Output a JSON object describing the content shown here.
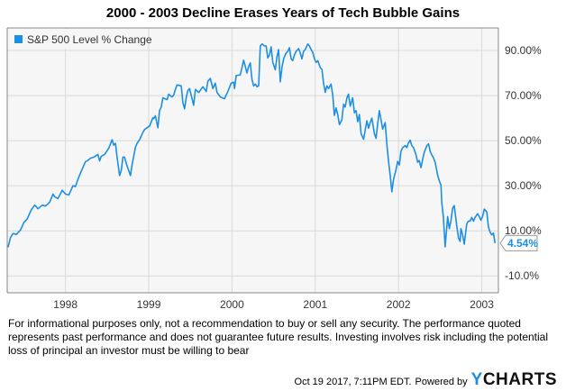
{
  "chart_data": {
    "type": "line",
    "title": "2000 - 2003 Decline Erases Years of Tech Bubble Gains",
    "xlabel": "",
    "ylabel": "",
    "xlim": [
      1997.3,
      2003.2
    ],
    "ylim": [
      -17.5,
      100
    ],
    "grid": true,
    "legend": {
      "position": "top-left",
      "entries": [
        {
          "label": "S&P 500 Level % Change",
          "color": "#1c8fe3"
        }
      ]
    },
    "x_ticks": [
      {
        "value": 1998,
        "label": "1998"
      },
      {
        "value": 1999,
        "label": "1999"
      },
      {
        "value": 2000,
        "label": "2000"
      },
      {
        "value": 2001,
        "label": "2001"
      },
      {
        "value": 2002,
        "label": "2002"
      },
      {
        "value": 2003,
        "label": "2003"
      }
    ],
    "y_ticks": [
      {
        "value": 90,
        "label": "90.00%"
      },
      {
        "value": 70,
        "label": "70.00%"
      },
      {
        "value": 50,
        "label": "50.00%"
      },
      {
        "value": 30,
        "label": "30.00%"
      },
      {
        "value": 10,
        "label": "10.00%"
      },
      {
        "value": -10,
        "label": "-10.0%"
      }
    ],
    "last_value_label": "4.54%",
    "series": [
      {
        "name": "S&P 500 Level % Change",
        "color": "#1c8fe3",
        "x": [
          1997.31,
          1997.34,
          1997.37,
          1997.41,
          1997.46,
          1997.5,
          1997.54,
          1997.59,
          1997.63,
          1997.67,
          1997.72,
          1997.76,
          1997.81,
          1997.85,
          1997.87,
          1997.91,
          1997.96,
          1998.0,
          1998.04,
          1998.09,
          1998.12,
          1998.15,
          1998.19,
          1998.24,
          1998.26,
          1998.3,
          1998.34,
          1998.39,
          1998.41,
          1998.43,
          1998.47,
          1998.52,
          1998.56,
          1998.58,
          1998.6,
          1998.62,
          1998.65,
          1998.67,
          1998.69,
          1998.71,
          1998.73,
          1998.75,
          1998.78,
          1998.8,
          1998.82,
          1998.84,
          1998.86,
          1998.89,
          1998.93,
          1998.95,
          1998.98,
          1999.01,
          1999.05,
          1999.06,
          1999.08,
          1999.11,
          1999.13,
          1999.15,
          1999.17,
          1999.22,
          1999.24,
          1999.28,
          1999.3,
          1999.32,
          1999.34,
          1999.39,
          1999.41,
          1999.43,
          1999.45,
          1999.47,
          1999.49,
          1999.54,
          1999.56,
          1999.6,
          1999.65,
          1999.69,
          1999.71,
          1999.74,
          1999.77,
          1999.8,
          1999.82,
          1999.86,
          1999.91,
          1999.95,
          1999.99,
          2000.02,
          2000.03,
          2000.05,
          2000.1,
          2000.12,
          2000.14,
          2000.16,
          2000.18,
          2000.2,
          2000.22,
          2000.24,
          2000.26,
          2000.28,
          2000.3,
          2000.32,
          2000.34,
          2000.36,
          2000.39,
          2000.41,
          2000.43,
          2000.45,
          2000.47,
          2000.49,
          2000.52,
          2000.54,
          2000.56,
          2000.58,
          2000.6,
          2000.62,
          2000.65,
          2000.67,
          2000.69,
          2000.71,
          2000.73,
          2000.75,
          2000.77,
          2000.8,
          2000.82,
          2000.84,
          2000.86,
          2000.88,
          2000.91,
          2000.93,
          2000.95,
          2000.97,
          2000.99,
          2001.01,
          2001.03,
          2001.06,
          2001.08,
          2001.1,
          2001.12,
          2001.14,
          2001.16,
          2001.19,
          2001.21,
          2001.23,
          2001.25,
          2001.27,
          2001.29,
          2001.32,
          2001.34,
          2001.36,
          2001.38,
          2001.4,
          2001.42,
          2001.45,
          2001.47,
          2001.49,
          2001.51,
          2001.53,
          2001.55,
          2001.58,
          2001.6,
          2001.62,
          2001.64,
          2001.66,
          2001.68,
          2001.71,
          2001.73,
          2001.75,
          2001.77,
          2001.79,
          2001.81,
          2001.84,
          2001.86,
          2001.88,
          2001.9,
          2001.92,
          2001.94,
          2001.97,
          2001.99,
          2002.01,
          2002.03,
          2002.05,
          2002.08,
          2002.1,
          2002.12,
          2002.14,
          2002.16,
          2002.18,
          2002.21,
          2002.23,
          2002.25,
          2002.27,
          2002.29,
          2002.31,
          2002.34,
          2002.36,
          2002.38,
          2002.4,
          2002.42,
          2002.44,
          2002.47,
          2002.49,
          2002.51,
          2002.52,
          2002.54,
          2002.56,
          2002.59,
          2002.61,
          2002.63,
          2002.65,
          2002.67,
          2002.69,
          2002.7,
          2002.72,
          2002.74,
          2002.75,
          2002.77,
          2002.79,
          2002.82,
          2002.84,
          2002.86,
          2002.88,
          2002.9,
          2002.92,
          2002.95,
          2002.97,
          2002.99,
          2003.01,
          2003.03,
          2003.06,
          2003.08,
          2003.1,
          2003.12,
          2003.14,
          2003.16
        ],
        "y": [
          2.7,
          7.1,
          8.8,
          8.4,
          10.4,
          13.7,
          15.3,
          19.4,
          21.4,
          19.8,
          21.4,
          21.0,
          22.7,
          26.3,
          25.1,
          24.3,
          28.0,
          26.3,
          25.9,
          30.0,
          29.6,
          32.9,
          36.5,
          40.6,
          41.0,
          42.2,
          42.7,
          43.9,
          41.0,
          43.1,
          43.9,
          46.7,
          50.4,
          48.0,
          48.8,
          42.7,
          34.5,
          36.9,
          42.7,
          42.7,
          39.8,
          37.8,
          34.5,
          39.4,
          43.1,
          47.1,
          48.8,
          50.4,
          53.7,
          54.9,
          55.7,
          56.5,
          60.2,
          59.8,
          61.0,
          55.7,
          63.3,
          64.9,
          69.0,
          68.2,
          70.6,
          69.4,
          70.2,
          72.7,
          74.7,
          74.3,
          66.9,
          64.1,
          69.0,
          72.2,
          73.1,
          65.7,
          72.7,
          71.4,
          73.9,
          71.8,
          76.3,
          77.6,
          73.1,
          75.5,
          71.4,
          69.4,
          68.6,
          71.8,
          75.5,
          75.9,
          73.1,
          78.8,
          79.2,
          82.4,
          85.7,
          82.9,
          80.0,
          82.9,
          84.5,
          77.1,
          74.3,
          75.1,
          73.9,
          74.3,
          92.0,
          92.9,
          92.0,
          92.0,
          86.7,
          88.0,
          91.6,
          84.7,
          81.4,
          87.1,
          90.4,
          76.1,
          82.4,
          86.3,
          88.8,
          89.6,
          91.2,
          86.3,
          85.5,
          88.0,
          89.6,
          90.8,
          88.8,
          86.3,
          89.6,
          90.4,
          92.9,
          92.0,
          90.4,
          89.2,
          86.3,
          84.7,
          85.5,
          82.4,
          81.6,
          75.5,
          71.4,
          74.3,
          73.1,
          75.1,
          70.2,
          61.2,
          64.5,
          61.6,
          57.1,
          59.2,
          66.1,
          64.9,
          69.0,
          70.6,
          65.3,
          69.0,
          62.4,
          63.3,
          58.4,
          61.6,
          53.1,
          50.6,
          54.7,
          58.8,
          55.5,
          58.0,
          60.0,
          53.1,
          51.0,
          57.6,
          63.3,
          59.2,
          55.1,
          58.0,
          48.6,
          40.8,
          34.7,
          27.3,
          32.7,
          37.1,
          40.8,
          39.2,
          45.3,
          46.9,
          47.8,
          46.9,
          49.0,
          50.2,
          47.8,
          46.9,
          43.7,
          40.4,
          41.2,
          38.0,
          41.6,
          44.9,
          47.8,
          48.6,
          45.3,
          43.7,
          42.4,
          40.4,
          34.7,
          32.2,
          30.2,
          22.4,
          15.9,
          2.9,
          16.3,
          11.0,
          14.3,
          20.0,
          21.2,
          15.1,
          12.2,
          6.9,
          5.3,
          11.0,
          8.2,
          4.1,
          13.1,
          14.3,
          14.3,
          15.9,
          14.3,
          15.9,
          17.6,
          16.3,
          14.7,
          16.3,
          19.6,
          18.4,
          11.8,
          9.4,
          8.2,
          9.0,
          4.54
        ]
      }
    ]
  },
  "disclaimer": "For informational purposes only, not a recommendation to buy or sell any security. The performance quoted represents past performance and does not guarantee future results. Investing involves risk including the potential loss of principal an investor must be willing to bear",
  "footer": {
    "timestamp": "Oct 19 2017, 7:11PM EDT.",
    "powered_by": "Powered by",
    "brand_y": "Y",
    "brand_rest": "CHARTS"
  }
}
